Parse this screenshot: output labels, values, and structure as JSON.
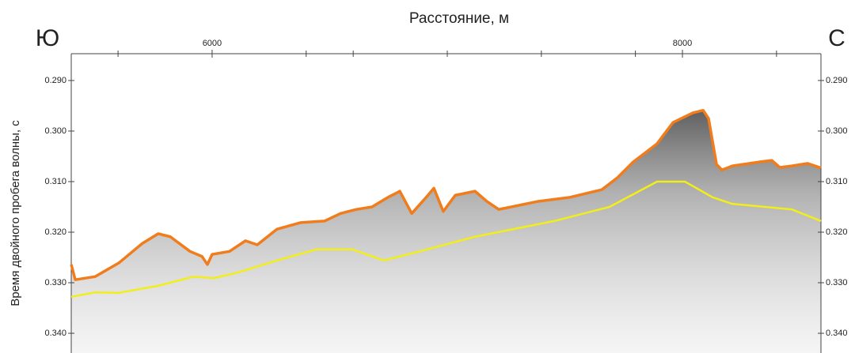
{
  "chart_data": {
    "type": "line",
    "title": "Расстояние, м",
    "ylabel": "Время двойного пробега волны, с",
    "annotations": [
      "Ю",
      "С"
    ],
    "y_inverted": true,
    "xlim": [
      5401,
      8589
    ],
    "xticks": [
      6000,
      8000
    ],
    "xminor_ticks": [
      5600,
      6400,
      6600,
      7000,
      7400,
      7800,
      8400
    ],
    "ylim": [
      0.2847,
      0.3439
    ],
    "yticks": [
      {
        "value": 0.29,
        "label": "0.290"
      },
      {
        "value": 0.3,
        "label": "0.300"
      },
      {
        "value": 0.31,
        "label": "0.310"
      },
      {
        "value": 0.32,
        "label": "0.320"
      },
      {
        "value": 0.33,
        "label": "0.330"
      },
      {
        "value": 0.34,
        "label": "0.340"
      }
    ],
    "series": [
      {
        "color": "#f07c1c",
        "x": [
          5401,
          5418,
          5502,
          5603,
          5704,
          5771,
          5822,
          5906,
          5957,
          5980,
          6000,
          6074,
          6142,
          6192,
          6276,
          6377,
          6478,
          6546,
          6613,
          6680,
          6748,
          6798,
          6849,
          6916,
          6943,
          6983,
          7034,
          7118,
          7168,
          7219,
          7303,
          7387,
          7522,
          7657,
          7724,
          7791,
          7892,
          7960,
          8044,
          8088,
          8111,
          8145,
          8168,
          8212,
          8330,
          8380,
          8414,
          8465,
          8532,
          8589
        ],
        "values": [
          0.3264,
          0.3294,
          0.3288,
          0.3261,
          0.3222,
          0.3203,
          0.3209,
          0.3238,
          0.3248,
          0.3264,
          0.3244,
          0.3238,
          0.3217,
          0.3225,
          0.3194,
          0.3181,
          0.3178,
          0.3163,
          0.3155,
          0.315,
          0.3131,
          0.3119,
          0.3163,
          0.3128,
          0.3113,
          0.3159,
          0.3127,
          0.3119,
          0.3139,
          0.3155,
          0.3147,
          0.3139,
          0.3131,
          0.3116,
          0.3092,
          0.3061,
          0.3025,
          0.2983,
          0.2964,
          0.2959,
          0.2975,
          0.3066,
          0.3077,
          0.3069,
          0.3061,
          0.3058,
          0.3072,
          0.3069,
          0.3064,
          0.3073
        ]
      },
      {
        "color": "#f2ee1a",
        "x": [
          5401,
          5502,
          5603,
          5771,
          5922,
          6006,
          6108,
          6276,
          6444,
          6596,
          6731,
          6882,
          7118,
          7455,
          7690,
          7892,
          8010,
          8128,
          8212,
          8465,
          8589
        ],
        "values": [
          0.3328,
          0.3319,
          0.332,
          0.3306,
          0.3288,
          0.3291,
          0.328,
          0.3256,
          0.3234,
          0.3234,
          0.3256,
          0.3238,
          0.3209,
          0.3178,
          0.315,
          0.31,
          0.31,
          0.3131,
          0.3144,
          0.3155,
          0.3178
        ]
      }
    ]
  }
}
